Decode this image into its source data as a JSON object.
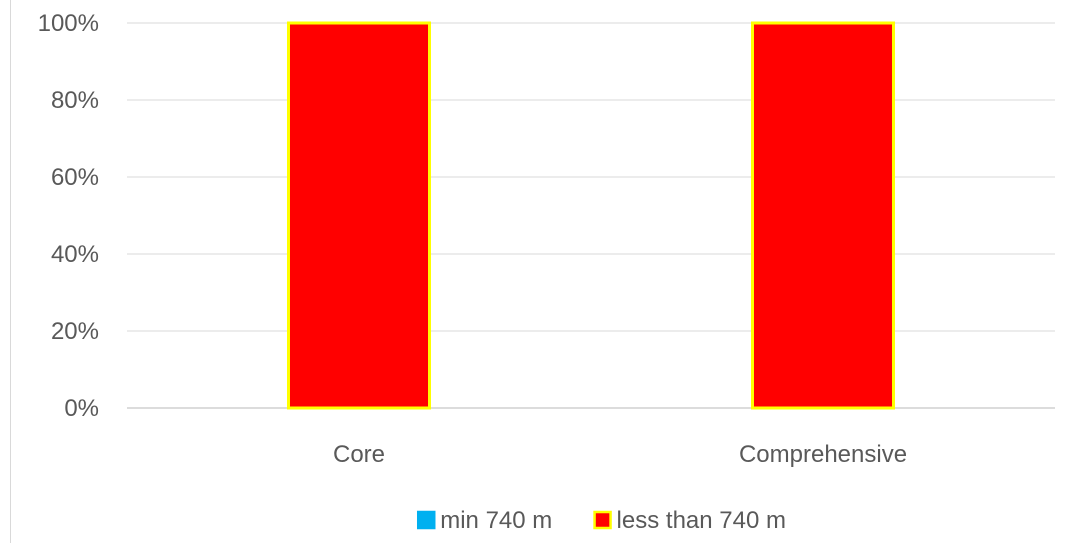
{
  "chart_data": {
    "type": "bar",
    "stacked": true,
    "percent_stacked": true,
    "categories": [
      "Core",
      "Comprehensive"
    ],
    "series": [
      {
        "name": "min 740 m",
        "values": [
          0,
          0
        ],
        "color": "#00b0f0",
        "stroke": "#00b0f0"
      },
      {
        "name": "less than 740 m",
        "values": [
          100,
          100
        ],
        "color": "#ff0000",
        "stroke": "#ffff00"
      }
    ],
    "y_ticks": [
      "0%",
      "20%",
      "40%",
      "60%",
      "80%",
      "100%"
    ],
    "ylim": [
      0,
      100
    ],
    "grid": true,
    "legend": "bottom",
    "title": "",
    "xlabel": "",
    "ylabel": ""
  }
}
